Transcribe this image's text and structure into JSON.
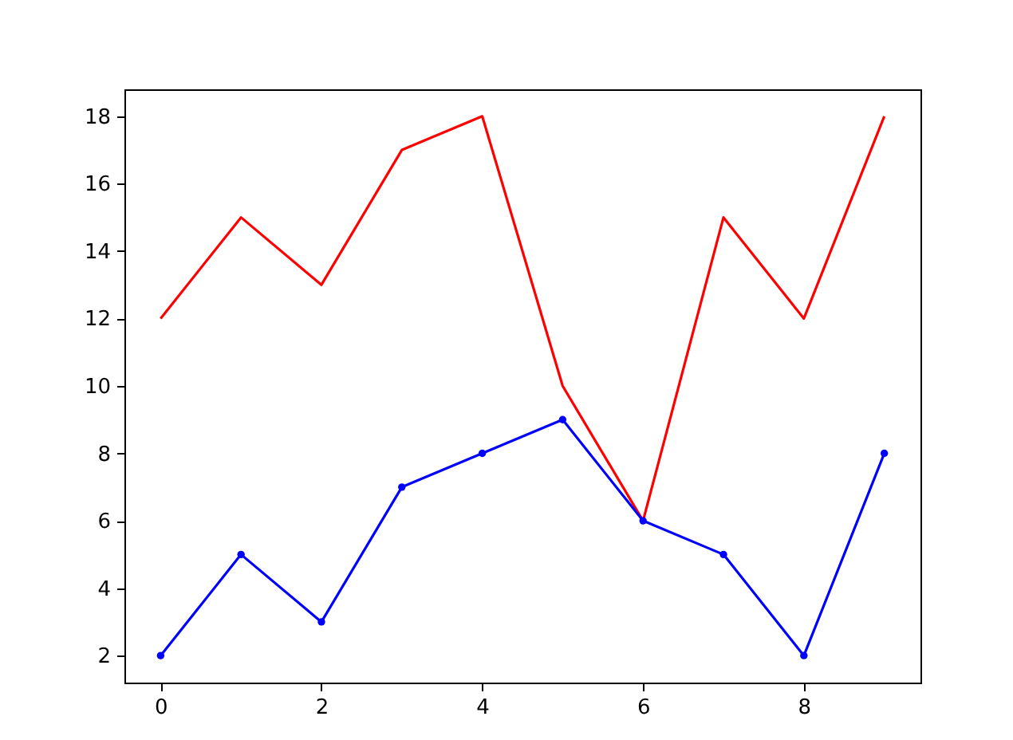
{
  "chart_data": {
    "type": "line",
    "x": [
      0,
      1,
      2,
      3,
      4,
      5,
      6,
      7,
      8,
      9
    ],
    "series": [
      {
        "color": "#ff0000",
        "marker": "none",
        "values": [
          12,
          15,
          13,
          17,
          18,
          10,
          6,
          15,
          12,
          18
        ]
      },
      {
        "color": "#0000ff",
        "marker": "circle",
        "values": [
          2,
          5,
          3,
          7,
          8,
          9,
          6,
          5,
          2,
          8
        ]
      }
    ],
    "xlim": [
      -0.45,
      9.45
    ],
    "xticks": [
      0,
      2,
      4,
      6,
      8
    ],
    "ylim": [
      1.2,
      18.8
    ],
    "yticks": [
      2,
      4,
      6,
      8,
      10,
      12,
      14,
      16,
      18
    ],
    "grid": false,
    "line_style": "solid"
  }
}
